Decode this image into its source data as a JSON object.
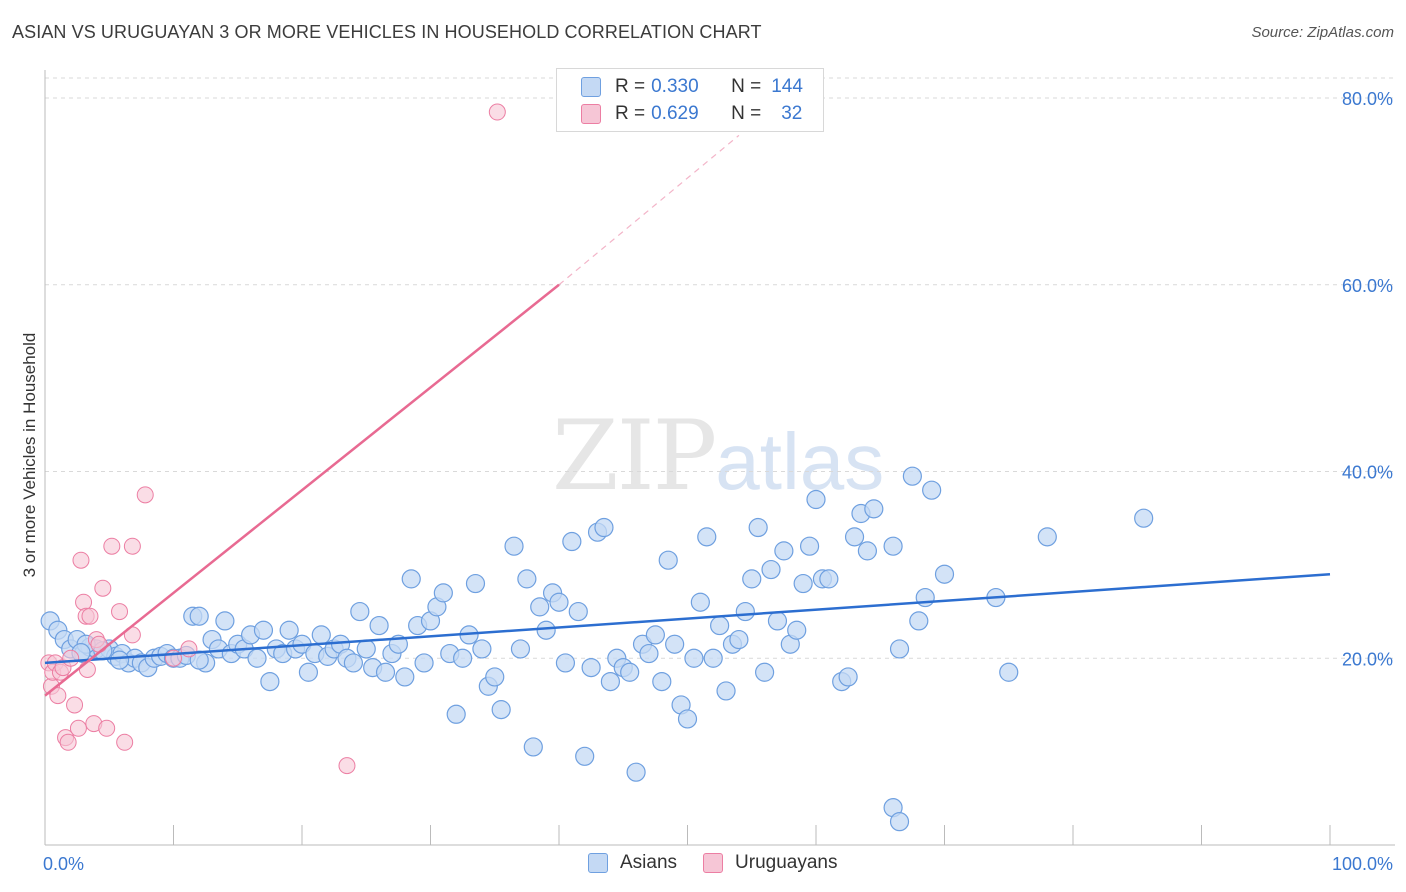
{
  "title": "ASIAN VS URUGUAYAN 3 OR MORE VEHICLES IN HOUSEHOLD CORRELATION CHART",
  "source": "Source: ZipAtlas.com",
  "watermark": {
    "zip": "ZIP",
    "atlas": "atlas"
  },
  "colors": {
    "asian": "#6fa0e0",
    "asian_fill": "#c4d9f4",
    "uruguayan": "#ec7ea3",
    "uruguayan_fill": "#f6c6d6",
    "asian_line": "#2c6ed0",
    "uruguayan_line": "#e86a92",
    "tick_text": "#3b78d0"
  },
  "legend": {
    "asian": {
      "r_label": "R =",
      "r_value": "0.330",
      "n_label": "N =",
      "n_value": "144"
    },
    "uruguayan": {
      "r_label": "R =",
      "r_value": "0.629",
      "n_label": "N =",
      "n_value": "32"
    }
  },
  "series_labels": {
    "asian": "Asians",
    "uruguayan": "Uruguayans"
  },
  "chart_data": {
    "type": "scatter",
    "ylabel": "3 or more Vehicles in Household",
    "xlim": [
      0,
      100
    ],
    "ylim": [
      0,
      83
    ],
    "x_tick_labels": [
      "0.0%",
      "100.0%"
    ],
    "y_ticks": [
      20,
      40,
      60,
      80
    ],
    "y_tick_labels": [
      "20.0%",
      "40.0%",
      "60.0%",
      "80.0%"
    ],
    "series": [
      {
        "name": "Asians",
        "trend": {
          "x0": 0,
          "y0": 19.5,
          "x1": 100,
          "y1": 29.0
        },
        "points": [
          [
            0.4,
            24.0
          ],
          [
            1.0,
            23.0
          ],
          [
            1.5,
            22.0
          ],
          [
            2.0,
            21.0
          ],
          [
            2.5,
            22.0
          ],
          [
            3.0,
            20.5
          ],
          [
            3.5,
            21.2
          ],
          [
            4.0,
            21.0
          ],
          [
            5.0,
            21.0
          ],
          [
            5.5,
            20.2
          ],
          [
            6.0,
            20.5
          ],
          [
            6.5,
            19.5
          ],
          [
            7.0,
            20.0
          ],
          [
            7.5,
            19.5
          ],
          [
            8.0,
            19.0
          ],
          [
            8.5,
            20.0
          ],
          [
            9.0,
            20.2
          ],
          [
            9.5,
            20.5
          ],
          [
            10.0,
            20.0
          ],
          [
            10.5,
            20.0
          ],
          [
            11.0,
            20.3
          ],
          [
            11.5,
            24.5
          ],
          [
            12.0,
            24.5
          ],
          [
            12.5,
            19.5
          ],
          [
            13.0,
            22.0
          ],
          [
            13.5,
            21.0
          ],
          [
            14.0,
            24.0
          ],
          [
            14.5,
            20.5
          ],
          [
            15.0,
            21.5
          ],
          [
            15.5,
            21.0
          ],
          [
            16.0,
            22.5
          ],
          [
            16.5,
            20.0
          ],
          [
            17.0,
            23.0
          ],
          [
            17.5,
            17.5
          ],
          [
            18.0,
            21.0
          ],
          [
            18.5,
            20.5
          ],
          [
            19.0,
            23.0
          ],
          [
            19.5,
            21.0
          ],
          [
            20.0,
            21.5
          ],
          [
            20.5,
            18.5
          ],
          [
            21.0,
            20.5
          ],
          [
            21.5,
            22.5
          ],
          [
            22.0,
            20.2
          ],
          [
            22.5,
            21.0
          ],
          [
            23.0,
            21.5
          ],
          [
            23.5,
            20.0
          ],
          [
            24.0,
            19.5
          ],
          [
            24.5,
            25.0
          ],
          [
            25.0,
            21.0
          ],
          [
            25.5,
            19.0
          ],
          [
            26.0,
            23.5
          ],
          [
            26.5,
            18.5
          ],
          [
            27.0,
            20.5
          ],
          [
            27.5,
            21.5
          ],
          [
            28.0,
            18.0
          ],
          [
            28.5,
            28.5
          ],
          [
            29.0,
            23.5
          ],
          [
            29.5,
            19.5
          ],
          [
            30.0,
            24.0
          ],
          [
            30.5,
            25.5
          ],
          [
            31.0,
            27.0
          ],
          [
            32.0,
            14.0
          ],
          [
            31.5,
            20.5
          ],
          [
            32.5,
            20.0
          ],
          [
            33.0,
            22.5
          ],
          [
            33.5,
            28.0
          ],
          [
            34.0,
            21.0
          ],
          [
            34.5,
            17.0
          ],
          [
            35.0,
            18.0
          ],
          [
            35.5,
            14.5
          ],
          [
            36.5,
            32.0
          ],
          [
            37.0,
            21.0
          ],
          [
            37.5,
            28.5
          ],
          [
            38.0,
            10.5
          ],
          [
            38.5,
            25.5
          ],
          [
            39.0,
            23.0
          ],
          [
            39.5,
            27.0
          ],
          [
            40.0,
            26.0
          ],
          [
            40.5,
            19.5
          ],
          [
            41.0,
            32.5
          ],
          [
            41.5,
            25.0
          ],
          [
            42.0,
            9.5
          ],
          [
            42.5,
            19.0
          ],
          [
            43.0,
            33.5
          ],
          [
            43.5,
            34.0
          ],
          [
            44.0,
            17.5
          ],
          [
            44.5,
            20.0
          ],
          [
            45.0,
            19.0
          ],
          [
            45.5,
            18.5
          ],
          [
            46.0,
            7.8
          ],
          [
            46.5,
            21.5
          ],
          [
            47.0,
            20.5
          ],
          [
            47.5,
            22.5
          ],
          [
            48.0,
            17.5
          ],
          [
            48.5,
            30.5
          ],
          [
            49.0,
            21.5
          ],
          [
            49.5,
            15.0
          ],
          [
            50.0,
            13.5
          ],
          [
            50.5,
            20.0
          ],
          [
            51.0,
            26.0
          ],
          [
            51.5,
            33.0
          ],
          [
            52.0,
            20.0
          ],
          [
            52.5,
            23.5
          ],
          [
            53.0,
            16.5
          ],
          [
            53.5,
            21.5
          ],
          [
            54.0,
            22.0
          ],
          [
            54.5,
            25.0
          ],
          [
            55.0,
            28.5
          ],
          [
            55.5,
            34.0
          ],
          [
            56.0,
            18.5
          ],
          [
            56.5,
            29.5
          ],
          [
            57.0,
            24.0
          ],
          [
            57.5,
            31.5
          ],
          [
            58.0,
            21.5
          ],
          [
            58.5,
            23.0
          ],
          [
            59.0,
            28.0
          ],
          [
            59.5,
            32.0
          ],
          [
            60.0,
            37.0
          ],
          [
            60.5,
            28.5
          ],
          [
            61.0,
            28.5
          ],
          [
            62.0,
            17.5
          ],
          [
            62.5,
            18.0
          ],
          [
            63.0,
            33.0
          ],
          [
            63.5,
            35.5
          ],
          [
            64.0,
            31.5
          ],
          [
            64.5,
            36.0
          ],
          [
            66.0,
            32.0
          ],
          [
            67.5,
            39.5
          ],
          [
            69.0,
            38.0
          ],
          [
            66.5,
            21.0
          ],
          [
            68.0,
            24.0
          ],
          [
            68.5,
            26.5
          ],
          [
            70.0,
            29.0
          ],
          [
            74.0,
            26.5
          ],
          [
            75.0,
            18.5
          ],
          [
            78.0,
            33.0
          ],
          [
            85.5,
            35.0
          ],
          [
            66.0,
            4.0
          ],
          [
            66.5,
            2.5
          ],
          [
            12.0,
            19.8
          ],
          [
            4.5,
            20.8
          ],
          [
            3.2,
            21.5
          ],
          [
            2.8,
            20.6
          ],
          [
            5.8,
            19.8
          ]
        ]
      },
      {
        "name": "Uruguayans",
        "trend": {
          "x0": 0,
          "y0": 16.0,
          "x1": 40.0,
          "y1": 60.0
        },
        "trend_extension": {
          "x0": 40.0,
          "y0": 60.0,
          "x1": 54.0,
          "y1": 76.0
        },
        "points": [
          [
            0.3,
            19.5
          ],
          [
            0.5,
            17.0
          ],
          [
            0.6,
            18.5
          ],
          [
            0.8,
            19.5
          ],
          [
            1.0,
            16.0
          ],
          [
            1.2,
            18.5
          ],
          [
            1.4,
            19.0
          ],
          [
            1.6,
            11.5
          ],
          [
            2.0,
            20.0
          ],
          [
            2.3,
            15.0
          ],
          [
            2.6,
            12.5
          ],
          [
            2.8,
            30.5
          ],
          [
            3.0,
            26.0
          ],
          [
            3.2,
            24.5
          ],
          [
            3.5,
            24.5
          ],
          [
            3.8,
            13.0
          ],
          [
            4.0,
            22.0
          ],
          [
            4.2,
            21.5
          ],
          [
            4.5,
            27.5
          ],
          [
            4.8,
            12.5
          ],
          [
            5.2,
            32.0
          ],
          [
            5.8,
            25.0
          ],
          [
            6.2,
            11.0
          ],
          [
            6.8,
            32.0
          ],
          [
            6.8,
            22.5
          ],
          [
            7.8,
            37.5
          ],
          [
            10.0,
            20.0
          ],
          [
            11.2,
            21.0
          ],
          [
            23.5,
            8.5
          ],
          [
            35.2,
            78.5
          ],
          [
            1.8,
            11.0
          ],
          [
            3.3,
            18.8
          ]
        ]
      }
    ]
  }
}
